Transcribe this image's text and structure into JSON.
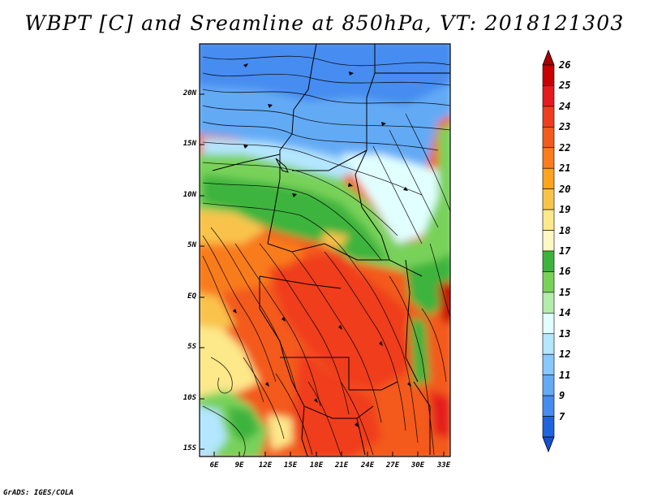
{
  "title": "WBPT [C] and Sreamline at 850hPa, VT: 2018121303",
  "footer": "GrADS: IGES/COLA",
  "lat_labels": [
    "20N",
    "15N",
    "10N",
    "5N",
    "EQ",
    "5S",
    "10S",
    "15S"
  ],
  "lon_labels": [
    "6E",
    "9E",
    "12E",
    "15E",
    "18E",
    "21E",
    "24E",
    "27E",
    "30E",
    "33E"
  ],
  "colorbar": {
    "labels": [
      "26",
      "25",
      "24",
      "23",
      "22",
      "21",
      "20",
      "19",
      "18",
      "17",
      "16",
      "15",
      "14",
      "13",
      "12",
      "11",
      "9",
      "7"
    ],
    "colors": [
      "#c80000",
      "#e41a1c",
      "#f03c1e",
      "#f35a1e",
      "#f97c1e",
      "#fda31e",
      "#f9c34b",
      "#fde88a",
      "#fff8c4",
      "#3cb43c",
      "#78d25a",
      "#b4ecaa",
      "#e1ffff",
      "#b4e6ff",
      "#87c8ff",
      "#64aaf5",
      "#468cf0",
      "#1e64dc"
    ]
  },
  "map": {
    "field": "Wet-bulb potential temperature",
    "units": "C",
    "level": "850hPa",
    "valid_time": "2018121303",
    "lat_range": [
      "15S",
      "23N"
    ],
    "lon_range": [
      "4E",
      "33E"
    ]
  }
}
